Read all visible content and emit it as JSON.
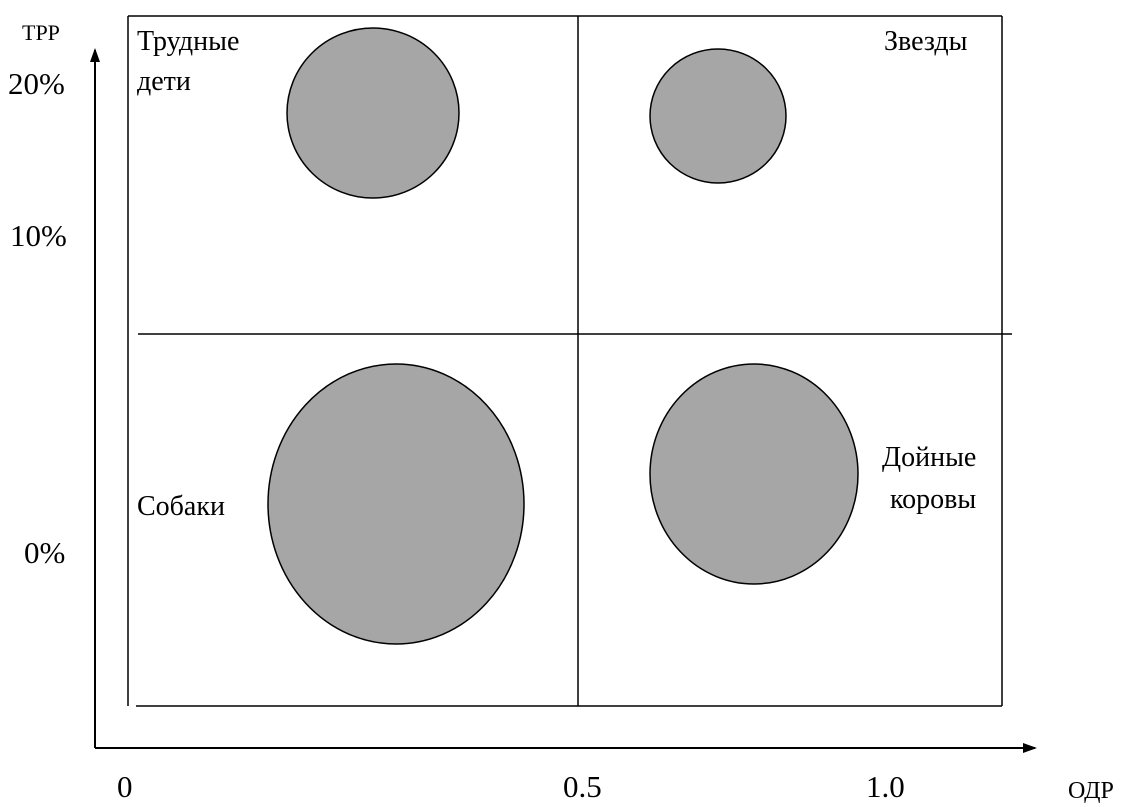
{
  "colors": {
    "bubble_fill": "#a6a6a6",
    "line": "#000000",
    "background": "#ffffff"
  },
  "axes": {
    "y_title": "ТРР",
    "x_title": "ОДР",
    "y_ticks": [
      "20%",
      "10%",
      "0%"
    ],
    "x_ticks": [
      "0",
      "0.5",
      "1.0"
    ]
  },
  "quadrants": {
    "top_left": [
      "Трудные",
      "дети"
    ],
    "top_right": "Звезды",
    "bottom_left": "Собаки",
    "bottom_right": [
      "Дойные",
      "коровы"
    ]
  }
}
